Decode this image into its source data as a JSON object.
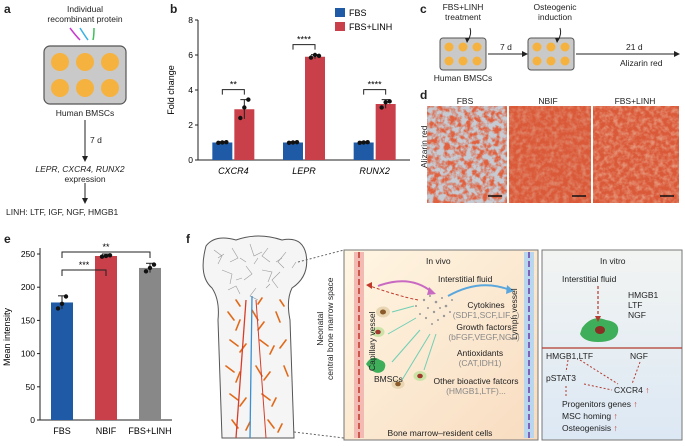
{
  "panel_a": {
    "label": "a",
    "protein_text": "Individual\nrecombinant protein",
    "cells_text": "Human BMSCs",
    "time_text": "7 d",
    "expression_genes": "LEPR, CXCR4, RUNX2",
    "expression_word": "expression",
    "linh_text": "LINH: LTF, IGF, NGF, HMGB1"
  },
  "panel_b": {
    "label": "b",
    "legend": [
      "FBS",
      "FBS+LINH"
    ],
    "significance": [
      "**",
      "****",
      "****"
    ]
  },
  "panel_c": {
    "label": "c",
    "treatment_text": "FBS+LINH\ntreatment",
    "osteogenic_text": "Osteogenic\ninduction",
    "time1": "7 d",
    "time2": "21 d",
    "cells_text": "Human BMSCs",
    "stain_text": "Alizarin red"
  },
  "panel_d": {
    "label": "d",
    "ylabel": "Alizarin red",
    "columns": [
      "FBS",
      "NBIF",
      "FBS+LINH"
    ]
  },
  "panel_e": {
    "label": "e",
    "significance": [
      "**",
      "***"
    ]
  },
  "panel_f": {
    "label": "f",
    "side_label": "Neonatal\ncentral bone marrow space",
    "capillary": "Capillary vessel",
    "lymph": "Lymph vessel",
    "invivo": "In vivo",
    "interstitial": "Interstitial fluid",
    "cytokines": "Cytokines",
    "cytokines_sub": "(SDF1,SCF,LIF...)",
    "growth": "Growth factors",
    "growth_sub": "(bFGF,VEGF,NGF)",
    "antiox": "Antioxidants",
    "antiox_sub": "(CAT,IDH1)",
    "other": "Other bioactive fatcors",
    "other_sub": "(HMGB1,LTF)...",
    "bmscs": "BMSCs",
    "resident": "Bone marrow–resident cells",
    "invitro": "In vitro",
    "invitro_fluid": "Interstitial fluid",
    "invitro_factors": "HMGB1\nLTF\nNGF",
    "hmgb1_ltf": "HMGB1,LTF",
    "ngf": "NGF",
    "pstat3": "pSTAT3",
    "cxcr4": "CXCR4",
    "progenitors": "Progenitors genes",
    "homing": "MSC homing",
    "osteo": "Osteogenisis",
    "up_arrow": "↑"
  },
  "colors": {
    "fbs": "#1f5aa6",
    "linh": "#c9404a",
    "nbif": "#c9404a",
    "gray": "#888888",
    "orange": "#f6b23e"
  },
  "chart_data": [
    {
      "panel": "b",
      "type": "bar",
      "categories": [
        "CXCR4",
        "LEPR",
        "RUNX2"
      ],
      "series": [
        {
          "name": "FBS",
          "values": [
            1.0,
            1.0,
            1.0
          ],
          "errors": [
            0.05,
            0.05,
            0.05
          ],
          "points": [
            [
              0.98,
              1.0,
              1.02
            ],
            [
              0.98,
              1.0,
              1.02
            ],
            [
              0.98,
              1.0,
              1.02
            ]
          ]
        },
        {
          "name": "FBS+LINH",
          "values": [
            2.9,
            5.9,
            3.2
          ],
          "errors": [
            0.55,
            0.12,
            0.25
          ],
          "points": [
            [
              2.4,
              3.0,
              3.45
            ],
            [
              5.85,
              6.0,
              5.95
            ],
            [
              3.0,
              3.3,
              3.35
            ]
          ]
        }
      ],
      "title": "",
      "xlabel": "",
      "ylabel": "Fold change",
      "ylim": [
        0,
        8
      ],
      "yticks": [
        0,
        2,
        4,
        6,
        8
      ],
      "legend_position": "top-right"
    },
    {
      "panel": "e",
      "type": "bar",
      "categories": [
        "FBS",
        "NBIF",
        "FBS+LINH"
      ],
      "values": [
        177,
        247,
        229
      ],
      "errors": [
        10,
        3,
        7
      ],
      "points": [
        [
          168,
          175,
          186
        ],
        [
          246,
          247,
          248
        ],
        [
          224,
          229,
          234
        ]
      ],
      "title": "",
      "xlabel": "",
      "ylabel": "Mean intensity",
      "ylim": [
        0,
        250
      ],
      "yticks": [
        0,
        50,
        100,
        150,
        200,
        250
      ]
    }
  ]
}
